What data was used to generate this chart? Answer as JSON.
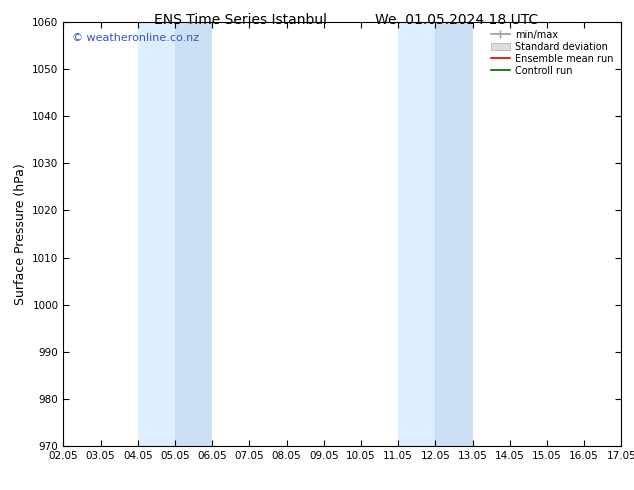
{
  "title_left": "ENS Time Series Istanbul",
  "title_right": "We. 01.05.2024 18 UTC",
  "ylabel": "Surface Pressure (hPa)",
  "ylim": [
    970,
    1060
  ],
  "yticks": [
    970,
    980,
    990,
    1000,
    1010,
    1020,
    1030,
    1040,
    1050,
    1060
  ],
  "xtick_labels": [
    "02.05",
    "03.05",
    "04.05",
    "05.05",
    "06.05",
    "07.05",
    "08.05",
    "09.05",
    "10.05",
    "11.05",
    "12.05",
    "13.05",
    "14.05",
    "15.05",
    "16.05",
    "17.05"
  ],
  "xlim": [
    0,
    15
  ],
  "shaded_regions": [
    {
      "xmin": 2.0,
      "xmax": 3.0,
      "color": "#ddeeff"
    },
    {
      "xmin": 3.0,
      "xmax": 4.0,
      "color": "#cce0f5"
    },
    {
      "xmin": 9.0,
      "xmax": 10.0,
      "color": "#ddeeff"
    },
    {
      "xmin": 10.0,
      "xmax": 11.0,
      "color": "#cce0f5"
    }
  ],
  "watermark": "© weatheronline.co.nz",
  "watermark_color": "#3355bb",
  "watermark_fontsize": 8,
  "legend_labels": [
    "min/max",
    "Standard deviation",
    "Ensemble mean run",
    "Controll run"
  ],
  "legend_colors_line": [
    "#999999",
    "#bbbbbb",
    "#dd0000",
    "#006600"
  ],
  "background_color": "#ffffff",
  "plot_background": "#ffffff",
  "title_fontsize": 10,
  "axis_label_fontsize": 9,
  "tick_fontsize": 7.5
}
